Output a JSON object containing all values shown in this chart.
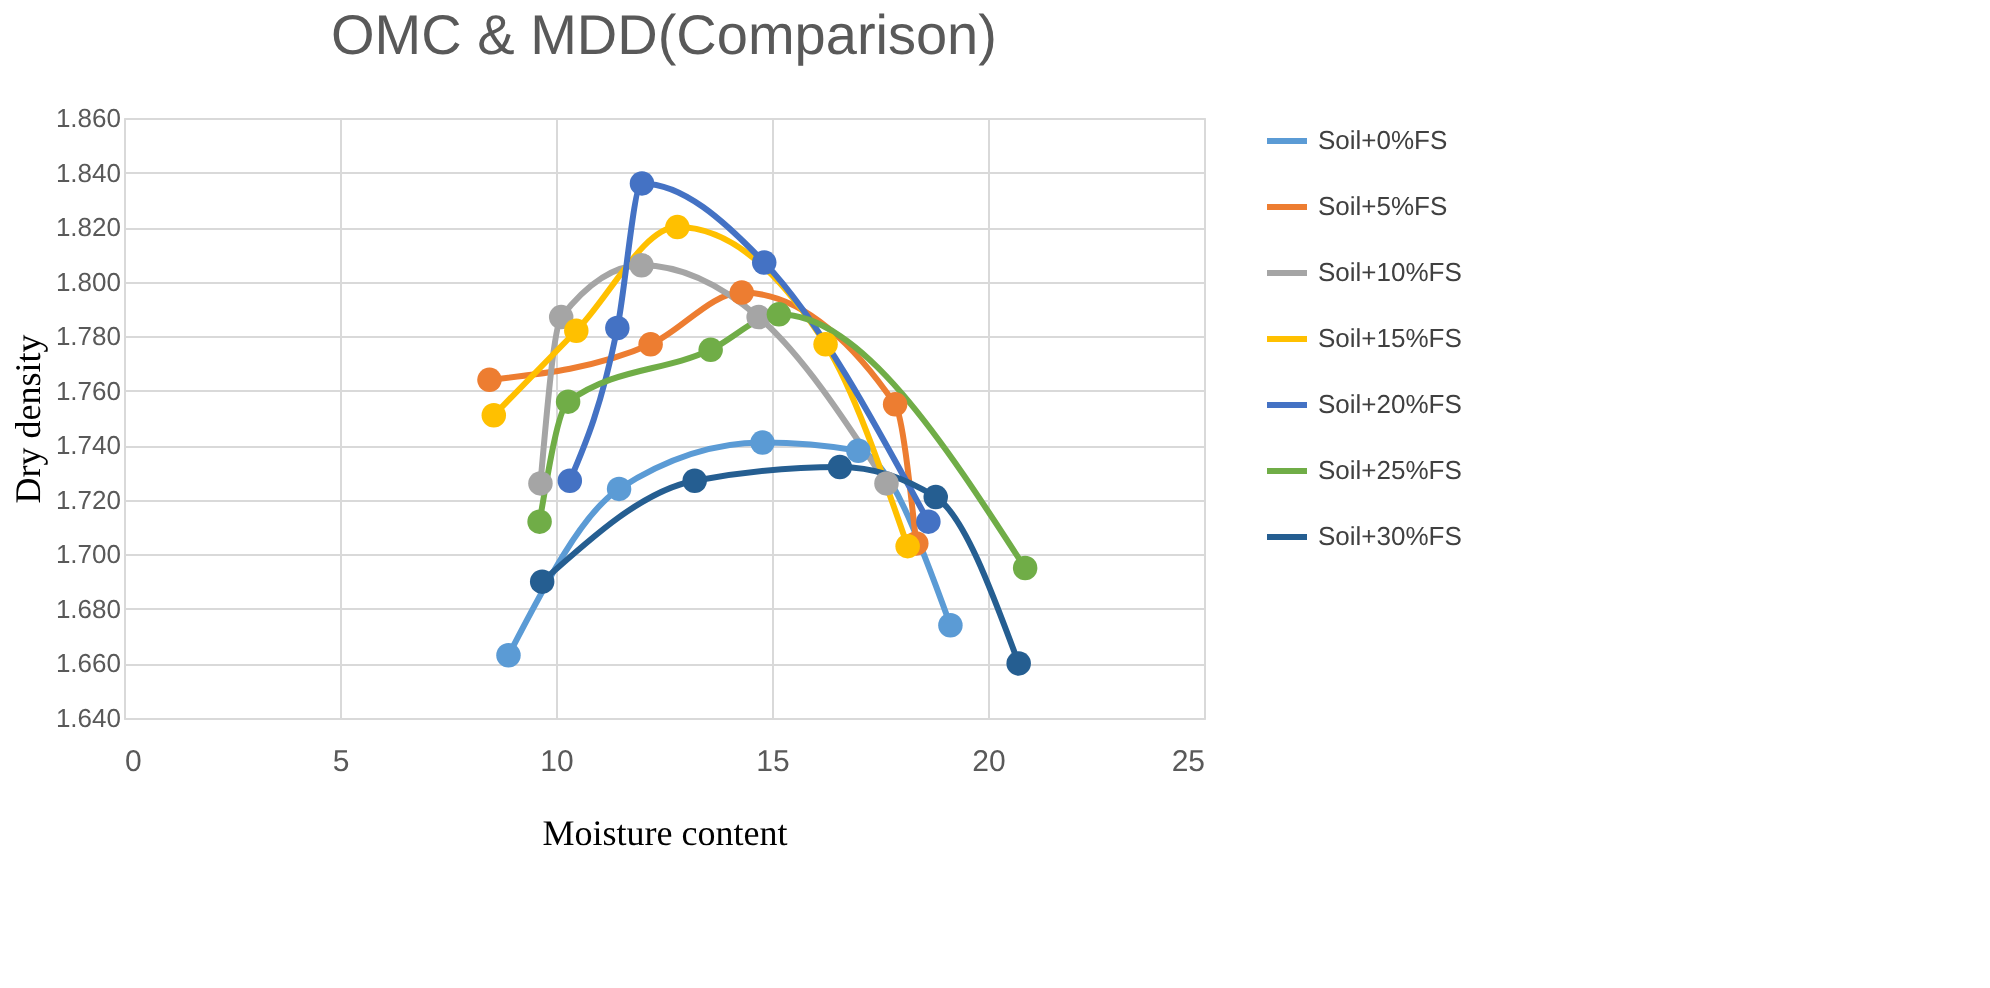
{
  "chart_data": {
    "type": "line",
    "title": "OMC & MDD(Comparison)",
    "xlabel": "Moisture content",
    "ylabel": "Dry density",
    "xlim": [
      0,
      25
    ],
    "xticks": [
      0,
      5,
      10,
      15,
      20,
      25
    ],
    "ylim": [
      1.64,
      1.86
    ],
    "yticks": [
      {
        "value": 1.64,
        "label": "1.640"
      },
      {
        "value": 1.66,
        "label": "1.660"
      },
      {
        "value": 1.68,
        "label": "1.680"
      },
      {
        "value": 1.7,
        "label": "1.700"
      },
      {
        "value": 1.72,
        "label": "1.720"
      },
      {
        "value": 1.74,
        "label": "1.740"
      },
      {
        "value": 1.76,
        "label": "1.760"
      },
      {
        "value": 1.78,
        "label": "1.780"
      },
      {
        "value": 1.8,
        "label": "1.800"
      },
      {
        "value": 1.82,
        "label": "1.820"
      },
      {
        "value": 1.84,
        "label": "1.840"
      },
      {
        "value": 1.86,
        "label": "1.860"
      }
    ],
    "grid": true,
    "legend": "right",
    "marker": "circle",
    "line_style": "solid",
    "series": [
      {
        "name": "Soil+0%FS",
        "color": "#5b9bd5",
        "x": [
          8.9,
          11.46,
          14.78,
          17.0,
          19.13
        ],
        "values": [
          1.663,
          1.724,
          1.741,
          1.738,
          1.674
        ]
      },
      {
        "name": "Soil+5%FS",
        "color": "#ed7d31",
        "x": [
          8.46,
          12.19,
          14.3,
          17.85,
          18.34
        ],
        "values": [
          1.764,
          1.777,
          1.796,
          1.755,
          1.704
        ]
      },
      {
        "name": "Soil+10%FS",
        "color": "#a5a5a5",
        "x": [
          9.64,
          10.12,
          11.98,
          14.69,
          17.65
        ],
        "values": [
          1.726,
          1.787,
          1.806,
          1.787,
          1.726
        ]
      },
      {
        "name": "Soil+15%FS",
        "color": "#ffc000",
        "x": [
          8.56,
          10.47,
          12.81,
          16.24,
          18.14
        ],
        "values": [
          1.751,
          1.782,
          1.82,
          1.777,
          1.703
        ]
      },
      {
        "name": "Soil+20%FS",
        "color": "#4472c4",
        "x": [
          10.32,
          11.42,
          11.99,
          14.82,
          18.62
        ],
        "values": [
          1.727,
          1.783,
          1.836,
          1.807,
          1.712
        ]
      },
      {
        "name": "Soil+25%FS",
        "color": "#70ad47",
        "x": [
          9.62,
          10.28,
          13.58,
          15.16,
          20.86
        ],
        "values": [
          1.712,
          1.756,
          1.775,
          1.788,
          1.695
        ]
      },
      {
        "name": "Soil+30%FS",
        "color": "#255e91",
        "x": [
          9.68,
          13.21,
          16.57,
          18.79,
          20.71
        ],
        "values": [
          1.69,
          1.727,
          1.732,
          1.721,
          1.66
        ]
      }
    ]
  }
}
